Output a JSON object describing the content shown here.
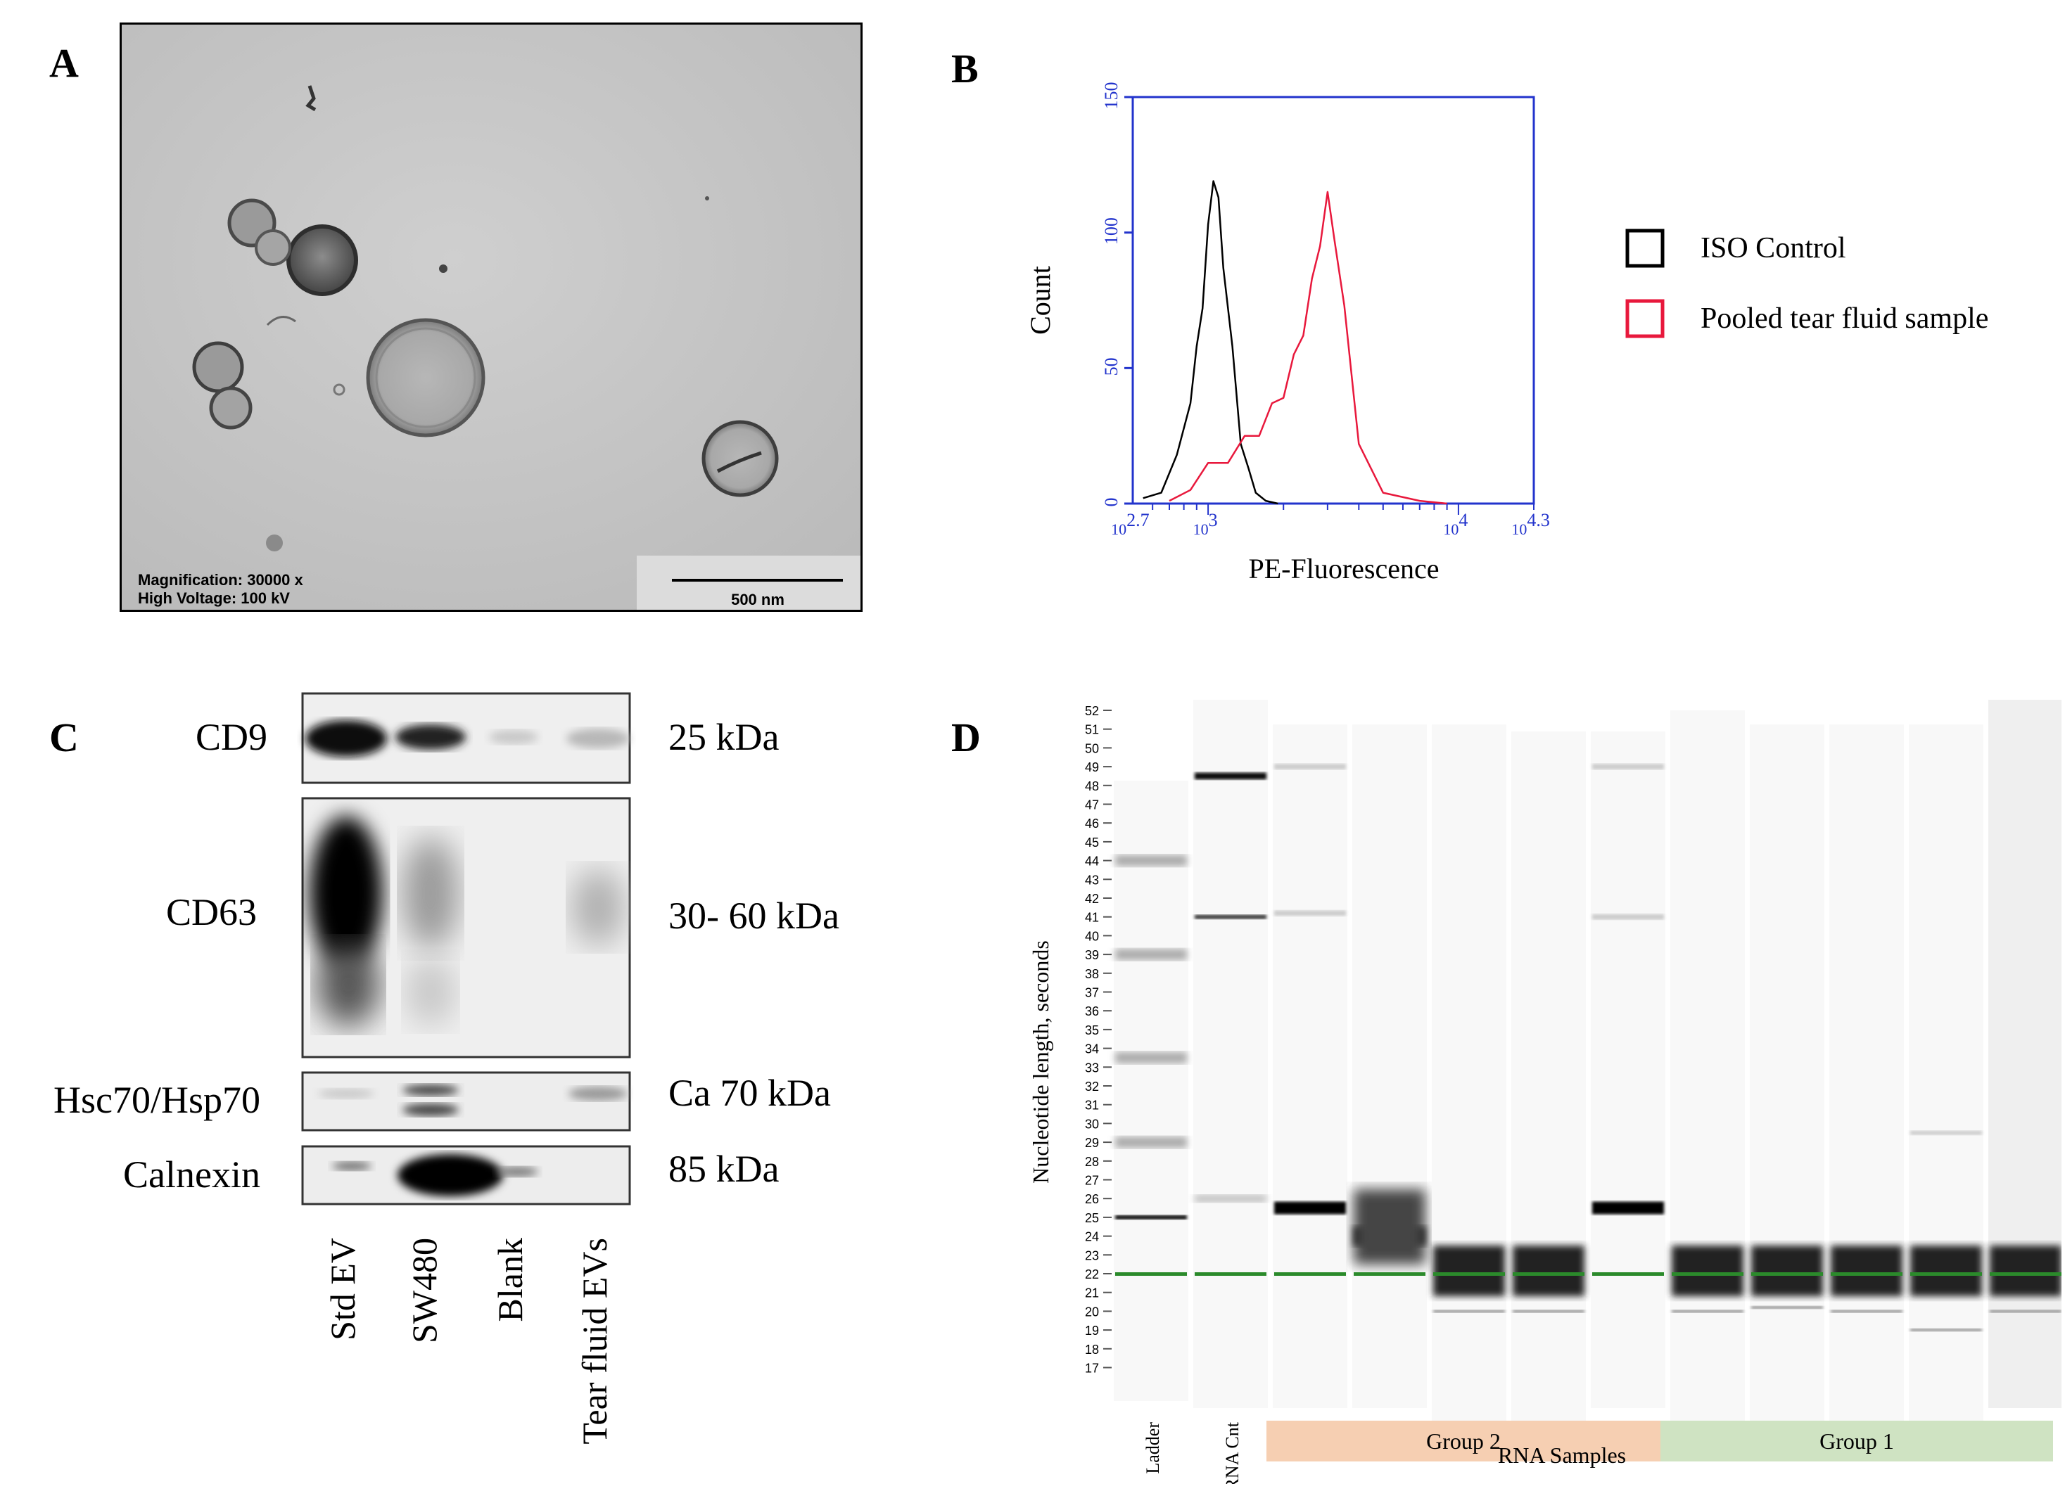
{
  "panel_labels": {
    "a": "A",
    "b": "B",
    "c": "C",
    "d": "D"
  },
  "panel_a": {
    "info_line1": "Magnification:  30000 x",
    "info_line2": "High Voltage:   100 kV",
    "scale_bar": "500 nm"
  },
  "chart_data": [
    {
      "type": "line",
      "xlabel": "PE-Fluorescence",
      "ylabel": "Count",
      "xscale": "log",
      "xlim": [
        500,
        20000
      ],
      "ylim": [
        0,
        150
      ],
      "x_ticks": [
        {
          "base": "10",
          "exp": "2.7"
        },
        {
          "base": "10",
          "exp": "3"
        },
        {
          "base": "10",
          "exp": "4"
        },
        {
          "base": "10",
          "exp": "4.3"
        }
      ],
      "y_ticks": [
        "0",
        "50",
        "100",
        "150"
      ],
      "legend": "right",
      "series": [
        {
          "name": "ISO Control",
          "color": "#000000",
          "x": [
            550,
            650,
            750,
            850,
            900,
            950,
            1000,
            1050,
            1100,
            1150,
            1250,
            1350,
            1450,
            1550,
            1700,
            1900
          ],
          "y": [
            2,
            4,
            15,
            40,
            55,
            75,
            100,
            122,
            110,
            90,
            55,
            25,
            10,
            4,
            1,
            0
          ]
        },
        {
          "name": "Pooled tear fluid sample",
          "color": "#e8183c",
          "x": [
            700,
            850,
            1000,
            1200,
            1400,
            1600,
            1800,
            2000,
            2200,
            2400,
            2600,
            2800,
            3000,
            3200,
            3500,
            4000,
            5000,
            7000,
            9000
          ],
          "y": [
            1,
            5,
            12,
            18,
            22,
            28,
            34,
            42,
            52,
            65,
            80,
            98,
            112,
            100,
            70,
            25,
            4,
            1,
            0
          ]
        }
      ]
    },
    {
      "type": "heatmap",
      "ylabel": "Nucleotide length, seconds",
      "xlabel": "RNA Samples",
      "y_ticks": [
        52,
        51,
        50,
        49,
        48,
        47,
        46,
        45,
        44,
        43,
        42,
        41,
        40,
        39,
        38,
        37,
        36,
        35,
        34,
        33,
        32,
        31,
        30,
        29,
        28,
        27,
        26,
        25,
        24,
        23,
        22,
        21,
        20,
        19,
        18,
        17
      ],
      "lanes": [
        {
          "label": "Ladder",
          "bands": [
            44,
            39,
            33.5,
            29,
            25,
            22
          ]
        },
        {
          "label": "RNA Cnt",
          "bands": [
            48.5,
            41,
            26,
            22
          ]
        },
        {
          "label": "",
          "bands": [
            49,
            41.2,
            25.5,
            22
          ]
        },
        {
          "label": "",
          "bands": [
            24,
            22
          ]
        },
        {
          "label": "",
          "bands": [
            22,
            20
          ]
        },
        {
          "label": "",
          "bands": [
            22,
            20
          ]
        },
        {
          "label": "",
          "bands": [
            49,
            41,
            25.5,
            22
          ]
        },
        {
          "label": "",
          "bands": [
            22,
            20
          ]
        },
        {
          "label": "",
          "bands": [
            22,
            20.2
          ]
        },
        {
          "label": "",
          "bands": [
            22,
            20
          ]
        },
        {
          "label": "",
          "bands": [
            29.5,
            22,
            19
          ]
        },
        {
          "label": "",
          "bands": [
            22,
            20
          ]
        }
      ],
      "groups": [
        {
          "label": "Group 2",
          "color": "#f6cfb2"
        },
        {
          "label": "Group 1",
          "color": "#cfe3c2"
        }
      ]
    }
  ],
  "panel_c": {
    "rows": [
      {
        "label": "CD9",
        "size": "25 kDa"
      },
      {
        "label": "CD63",
        "size": "30- 60 kDa"
      },
      {
        "label": "Hsc70/Hsp70",
        "size": "Ca 70 kDa"
      },
      {
        "label": "Calnexin",
        "size": "85 kDa"
      }
    ],
    "lanes": [
      "Std EV",
      "SW480",
      "Blank",
      "Tear fluid EVs"
    ]
  }
}
